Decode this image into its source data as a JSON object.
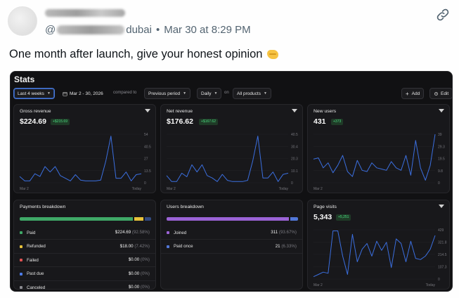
{
  "post": {
    "handle_prefix": "@",
    "handle_suffix": "dubai",
    "separator": "•",
    "timestamp": "Mar 30 at 8:29 PM",
    "text": "One month after launch, give your honest opinion"
  },
  "dashboard": {
    "title": "Stats",
    "toolbar": {
      "range": "Last 4 weeks",
      "dates": "Mar 2 - 30, 2026",
      "compared_to": "compared to",
      "previous": "Previous period",
      "interval": "Daily",
      "on": "on",
      "products": "All products",
      "add": "Add",
      "edit": "Edit"
    },
    "cards": {
      "gross": {
        "title": "Gross revenue",
        "value": "$224.69",
        "badge": "+$215.69"
      },
      "net": {
        "title": "Net revenue",
        "value": "$176.62",
        "badge": "+$167.62"
      },
      "users": {
        "title": "New users",
        "value": "431",
        "badge": "+373"
      },
      "visits": {
        "title": "Page visits",
        "value": "5,343",
        "badge": "+5,251"
      }
    },
    "payments": {
      "title": "Payments breakdown",
      "rows": [
        {
          "label": "Paid",
          "value": "$224.69",
          "pct": "(92.58%)",
          "color": "#3fa867"
        },
        {
          "label": "Refunded",
          "value": "$18.00",
          "pct": "(7.42%)",
          "color": "#e8c23a"
        },
        {
          "label": "Failed",
          "value": "$0.00",
          "pct": "(0%)",
          "color": "#e05252"
        },
        {
          "label": "Past due",
          "value": "$0.00",
          "pct": "(0%)",
          "color": "#4c7be8"
        },
        {
          "label": "Canceled",
          "value": "$0.00",
          "pct": "(0%)",
          "color": "#8a8a90"
        }
      ]
    },
    "users_breakdown": {
      "title": "Users breakdown",
      "rows": [
        {
          "label": "Joined",
          "value": "311",
          "pct": "(93.67%)",
          "color": "#9b63d6"
        },
        {
          "label": "Paid once",
          "value": "21",
          "pct": "(6.33%)",
          "color": "#5277d8"
        }
      ]
    },
    "colors": {
      "line": "#3b6fe0",
      "positive": "#4ade80",
      "card_bg": "#18181b"
    }
  },
  "chart_data": [
    {
      "type": "line",
      "title": "Gross revenue",
      "x_labels": [
        "Mar 2",
        "Today"
      ],
      "y_ticks": [
        "54",
        "40.5",
        "27",
        "13.5",
        "0"
      ],
      "ylim": [
        0,
        54
      ],
      "series": [
        {
          "values": [
            7,
            2,
            2,
            10,
            7,
            18,
            12,
            18,
            8,
            5,
            2,
            9,
            3,
            2,
            2,
            2,
            3,
            24,
            52,
            5,
            5,
            12,
            2,
            9,
            10
          ]
        }
      ]
    },
    {
      "type": "line",
      "title": "Net revenue",
      "x_labels": [
        "Mar 2",
        "Today"
      ],
      "y_ticks": [
        "40.5",
        "30.4",
        "20.3",
        "10.1",
        "0"
      ],
      "ylim": [
        0,
        40.5
      ],
      "series": [
        {
          "values": [
            6,
            1,
            1,
            8,
            5,
            15,
            9,
            15,
            6,
            4,
            1,
            7,
            2,
            1,
            1,
            1,
            2,
            18,
            39,
            4,
            4,
            9,
            1,
            7,
            8
          ]
        }
      ]
    },
    {
      "type": "line",
      "title": "New users",
      "x_labels": [
        "Mar 2"
      ],
      "y_ticks": [
        "39",
        "29.3",
        "19.5",
        "9.8",
        "0"
      ],
      "ylim": [
        0,
        39
      ],
      "series": [
        {
          "values": [
            19,
            20,
            12,
            16,
            8,
            14,
            22,
            9,
            5,
            18,
            10,
            9,
            16,
            12,
            11,
            10,
            17,
            12,
            10,
            22,
            6,
            34,
            12,
            2,
            14,
            39
          ]
        }
      ]
    },
    {
      "type": "line",
      "title": "Page visits",
      "x_labels": [
        "Mar 2",
        "Today"
      ],
      "y_ticks": [
        "429",
        "321.8",
        "214.5",
        "107.3",
        "0"
      ],
      "ylim": [
        0,
        429
      ],
      "series": [
        {
          "values": [
            20,
            40,
            60,
            50,
            420,
            420,
            200,
            40,
            390,
            150,
            260,
            310,
            200,
            330,
            250,
            320,
            100,
            350,
            310,
            150,
            330,
            180,
            170,
            200,
            260,
            380
          ]
        }
      ]
    }
  ]
}
